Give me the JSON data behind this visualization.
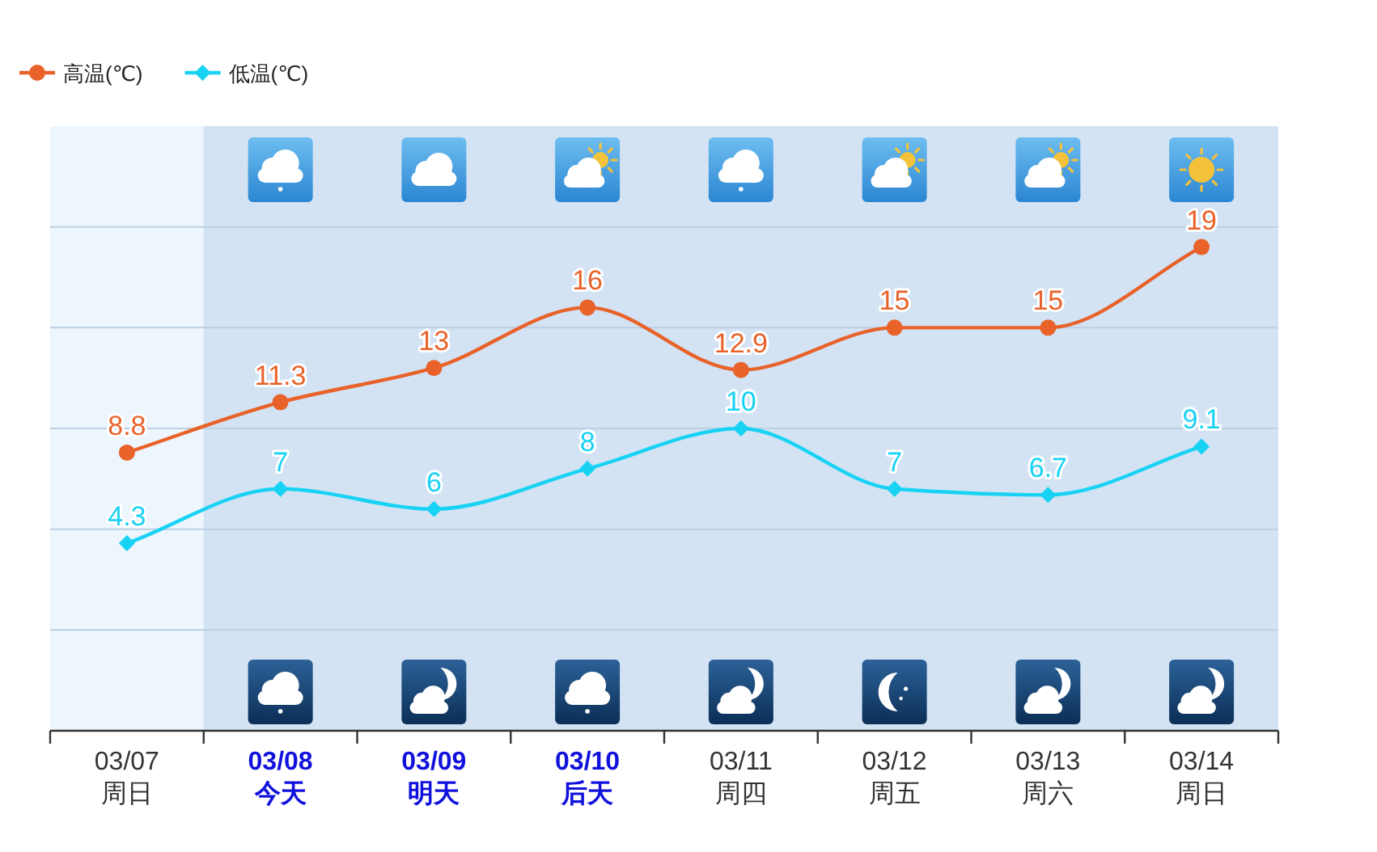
{
  "chart_data": {
    "type": "line",
    "categories": [
      "03/07\n周日",
      "03/08\n今天",
      "03/09\n明天",
      "03/10\n后天",
      "03/11\n周四",
      "03/12\n周五",
      "03/13\n周六",
      "03/14\n周日"
    ],
    "series": [
      {
        "name": "高温(℃)",
        "color": "#e8622a",
        "marker": "circle",
        "values": [
          8.8,
          11.3,
          13,
          16,
          12.9,
          15,
          15,
          19
        ]
      },
      {
        "name": "低温(℃)",
        "color": "#18d2f4",
        "marker": "diamond",
        "values": [
          4.3,
          7,
          6,
          8,
          10,
          7,
          6.7,
          9.1
        ]
      }
    ],
    "ylim": [
      -5,
      25
    ],
    "yticks": [
      {
        "value": 0,
        "label": null
      },
      {
        "value": 5,
        "label": null
      },
      {
        "value": 10,
        "label": null
      },
      {
        "value": 15,
        "label": null
      },
      {
        "value": 20,
        "label": null
      }
    ],
    "tick_labels": "x",
    "grid": "y",
    "legend": "top left",
    "data_labels": true,
    "bands": [
      {
        "axis": "x",
        "from": "03/08\n今天",
        "to": "03/14\n周日",
        "color": "#d3e3f4"
      }
    ]
  }
}
